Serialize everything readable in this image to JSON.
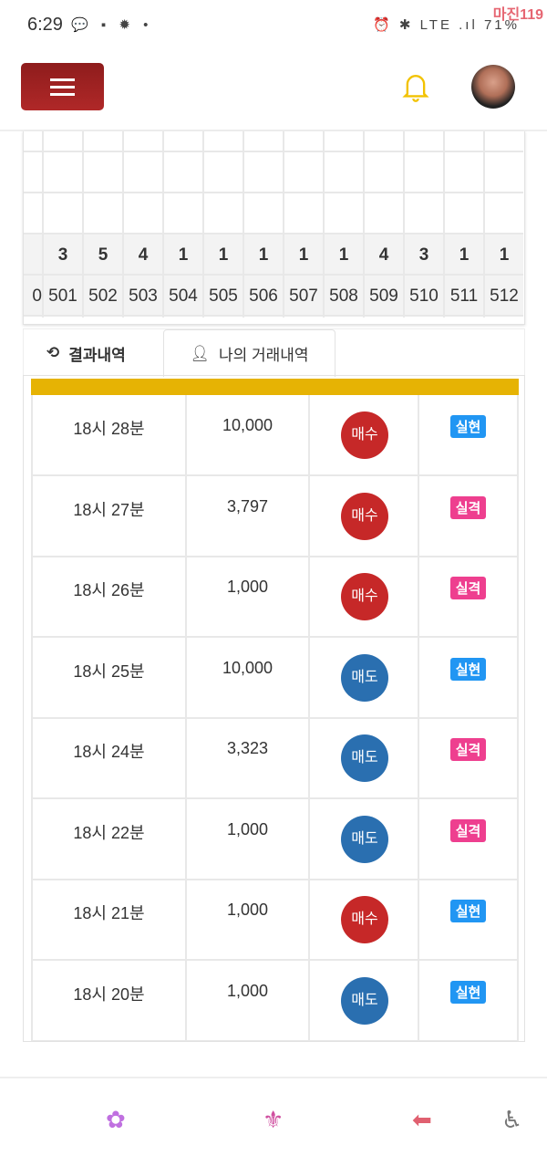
{
  "status": {
    "time": "6:29",
    "left_icons": "💬 ▪ ✹ •",
    "right_icons": "⏰ ✱ LTE .ıl",
    "battery": "71%",
    "watermark": "마진119"
  },
  "header": {
    "menu_icon": "hamburger-icon",
    "bell_icon": "bell-icon",
    "avatar": "user-avatar"
  },
  "grid": {
    "columns": [
      {
        "count": "",
        "label": "0"
      },
      {
        "count": "3",
        "label": "501"
      },
      {
        "count": "5",
        "label": "502"
      },
      {
        "count": "4",
        "label": "503"
      },
      {
        "count": "1",
        "label": "504"
      },
      {
        "count": "1",
        "label": "505"
      },
      {
        "count": "1",
        "label": "506"
      },
      {
        "count": "1",
        "label": "507"
      },
      {
        "count": "1",
        "label": "508"
      },
      {
        "count": "4",
        "label": "509"
      },
      {
        "count": "3",
        "label": "510"
      },
      {
        "count": "1",
        "label": "511"
      },
      {
        "count": "1",
        "label": "512"
      }
    ]
  },
  "tabs": [
    {
      "label": "결과내역",
      "icon": "history-icon"
    },
    {
      "label": "나의 거래내역",
      "icon": "user-icon",
      "active": true
    }
  ],
  "colors": {
    "buy": "#c62828",
    "sell": "#2a6fb0",
    "win": "#2196f3",
    "lose": "#ee3f8f",
    "header": "#e6b304"
  },
  "trades": [
    {
      "time": "18시 28분",
      "amount": "10,000",
      "side": "매수",
      "type": "buy",
      "result": "실현",
      "res": "win"
    },
    {
      "time": "18시 27분",
      "amount": "3,797",
      "side": "매수",
      "type": "buy",
      "result": "실격",
      "res": "lose"
    },
    {
      "time": "18시 26분",
      "amount": "1,000",
      "side": "매수",
      "type": "buy",
      "result": "실격",
      "res": "lose"
    },
    {
      "time": "18시 25분",
      "amount": "10,000",
      "side": "매도",
      "type": "sell",
      "result": "실현",
      "res": "win"
    },
    {
      "time": "18시 24분",
      "amount": "3,323",
      "side": "매도",
      "type": "sell",
      "result": "실격",
      "res": "lose"
    },
    {
      "time": "18시 22분",
      "amount": "1,000",
      "side": "매도",
      "type": "sell",
      "result": "실격",
      "res": "lose"
    },
    {
      "time": "18시 21분",
      "amount": "1,000",
      "side": "매수",
      "type": "buy",
      "result": "실현",
      "res": "win"
    },
    {
      "time": "18시 20분",
      "amount": "1,000",
      "side": "매도",
      "type": "sell",
      "result": "실현",
      "res": "win"
    }
  ],
  "bottom_nav": [
    {
      "icon": "flower-icon",
      "glyph": "✿"
    },
    {
      "icon": "phoenix-icon",
      "glyph": "⚜"
    },
    {
      "icon": "back-arrow-icon",
      "glyph": "⬅"
    },
    {
      "icon": "accessibility-icon",
      "glyph": "♿"
    }
  ]
}
